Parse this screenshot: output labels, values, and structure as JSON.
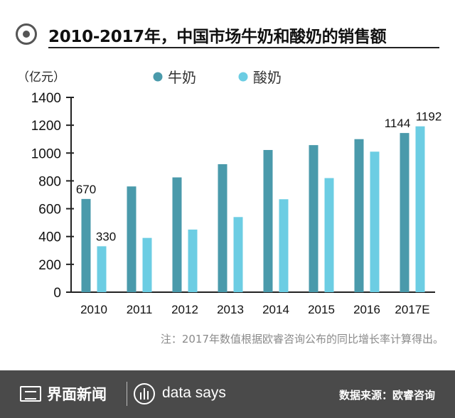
{
  "title": "2010-2017年，中国市场牛奶和酸奶的销售额",
  "note": "注：2017年数值根据欧睿咨询公布的同比增长率计算得出。",
  "footer": {
    "brand": "界面新闻",
    "partner": "data says",
    "source": "数据来源：欧睿咨询"
  },
  "colors": {
    "milk": "#4a9aab",
    "yogurt": "#6ccde3",
    "axis": "#222222",
    "footer_bg": "#4a4a4a"
  },
  "chart_data": {
    "type": "bar",
    "title": "2010-2017年，中国市场牛奶和酸奶的销售额",
    "ylabel": "（亿元）",
    "xlabel": "",
    "ylim": [
      0,
      1400
    ],
    "yticks": [
      "0",
      "200",
      "400",
      "600",
      "800",
      "1000",
      "1200",
      "1400"
    ],
    "categories": [
      "2010",
      "2011",
      "2012",
      "2013",
      "2014",
      "2015",
      "2016",
      "2017E"
    ],
    "legend_position": "top",
    "series": [
      {
        "name": "牛奶",
        "color": "#4a9aab",
        "values": [
          670,
          760,
          825,
          920,
          1022,
          1057,
          1100,
          1144
        ]
      },
      {
        "name": "酸奶",
        "color": "#6ccde3",
        "values": [
          330,
          390,
          450,
          540,
          668,
          820,
          1010,
          1192
        ]
      }
    ],
    "data_labels": [
      {
        "series": 0,
        "index": 0,
        "text": "670"
      },
      {
        "series": 1,
        "index": 0,
        "text": "330"
      },
      {
        "series": 0,
        "index": 7,
        "text": "1144"
      },
      {
        "series": 1,
        "index": 7,
        "text": "1192"
      }
    ]
  }
}
